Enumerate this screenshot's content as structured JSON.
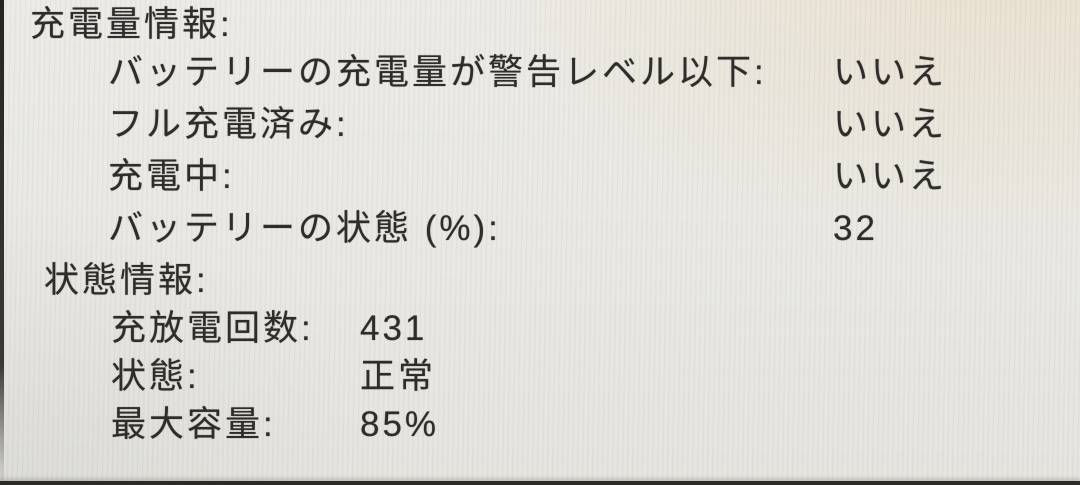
{
  "screen": {
    "background_color": "#eae8e2",
    "text_color": "#2e2d2b",
    "bezel_color": "#2c2b28"
  },
  "sections": [
    {
      "title": "充電量情報:",
      "rows": [
        {
          "label": "バッテリーの充電量が警告レベル以下:",
          "value": "いいえ"
        },
        {
          "label": "フル充電済み:",
          "value": "いいえ"
        },
        {
          "label": "充電中:",
          "value": "いいえ"
        },
        {
          "label": "バッテリーの状態 (%):",
          "value": "32"
        }
      ]
    },
    {
      "title": "状態情報:",
      "rows": [
        {
          "label": "充放電回数:",
          "value": "431"
        },
        {
          "label": "状態:",
          "value": "正常"
        },
        {
          "label": "最大容量:",
          "value": "85%"
        }
      ]
    }
  ]
}
